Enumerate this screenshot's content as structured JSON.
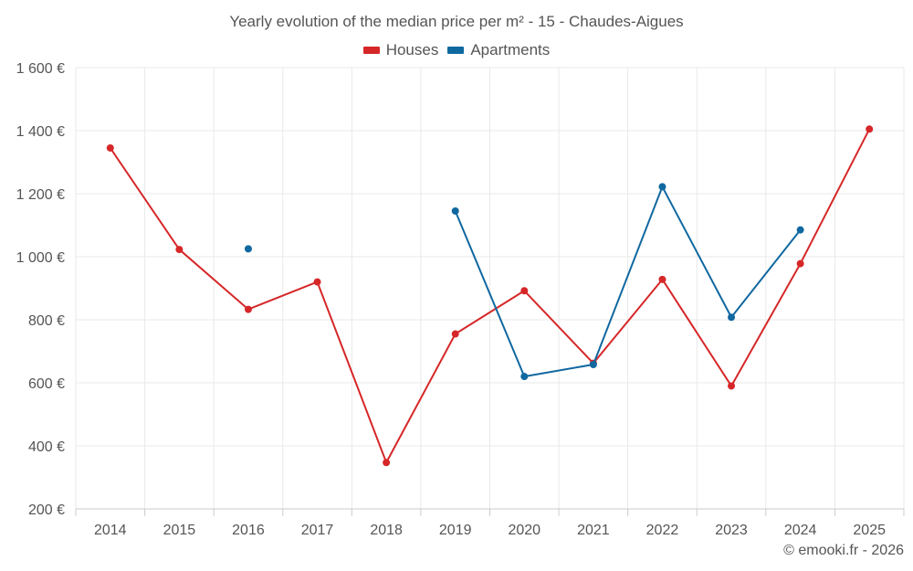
{
  "chart_data": {
    "type": "line",
    "title": "Yearly evolution of the median price per m² - 15 - Chaudes-Aigues",
    "xlabel": "",
    "ylabel": "",
    "categories": [
      "2014",
      "2015",
      "2016",
      "2017",
      "2018",
      "2019",
      "2020",
      "2021",
      "2022",
      "2023",
      "2024",
      "2025"
    ],
    "ylim": [
      200,
      1600
    ],
    "yticks": [
      200,
      400,
      600,
      800,
      1000,
      1200,
      1400,
      1600
    ],
    "ytick_labels": [
      "200 €",
      "400 €",
      "600 €",
      "800 €",
      "1 000 €",
      "1 200 €",
      "1 400 €",
      "1 600 €"
    ],
    "grid": true,
    "legend_position": "top-center",
    "series": [
      {
        "name": "Houses",
        "color": "#d62728",
        "values": [
          1345,
          1023,
          833,
          920,
          347,
          755,
          892,
          662,
          928,
          590,
          978,
          1405
        ]
      },
      {
        "name": "Apartments",
        "color": "#1068a0",
        "values": [
          null,
          null,
          1025,
          null,
          null,
          1145,
          620,
          658,
          1222,
          808,
          1085,
          null
        ]
      }
    ]
  },
  "copyright": "© emooki.fr - 2026"
}
